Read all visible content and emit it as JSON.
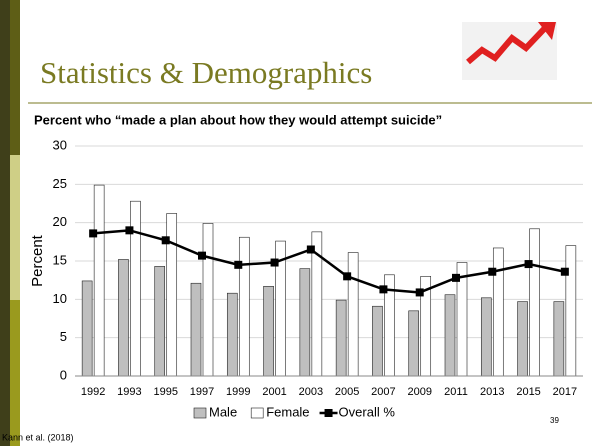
{
  "slide": {
    "title": "Statistics & Demographics",
    "page_number": "39",
    "source": "Kann et al. (2018)"
  },
  "chart_data": {
    "type": "bar",
    "title": "Percent who “made a plan about how they would attempt suicide”",
    "y_label": "Percent",
    "categories": [
      "1992",
      "1993",
      "1995",
      "1997",
      "1999",
      "2001",
      "2003",
      "2005",
      "2007",
      "2009",
      "2011",
      "2013",
      "2015",
      "2017"
    ],
    "series": [
      {
        "name": "Male",
        "color": "#bfbfbf",
        "values": [
          12.4,
          15.2,
          14.3,
          12.1,
          10.8,
          11.7,
          14.0,
          9.9,
          9.1,
          8.5,
          10.6,
          10.2,
          9.7,
          9.7
        ]
      },
      {
        "name": "Female",
        "color": "#ffffff",
        "values": [
          24.9,
          22.8,
          21.2,
          19.9,
          18.1,
          17.6,
          18.8,
          16.1,
          13.2,
          13.0,
          14.8,
          16.7,
          19.2,
          17.0
        ]
      },
      {
        "name": "Overall %",
        "color": "#000000",
        "type": "line",
        "values": [
          18.6,
          19.0,
          17.7,
          15.7,
          14.5,
          14.8,
          16.5,
          13.0,
          11.3,
          10.9,
          12.8,
          13.6,
          14.6,
          13.6
        ]
      }
    ],
    "ylim": [
      0,
      30
    ],
    "yticks": [
      0,
      5,
      10,
      15,
      20,
      25,
      30
    ],
    "grid": true,
    "legend": "bottom"
  }
}
